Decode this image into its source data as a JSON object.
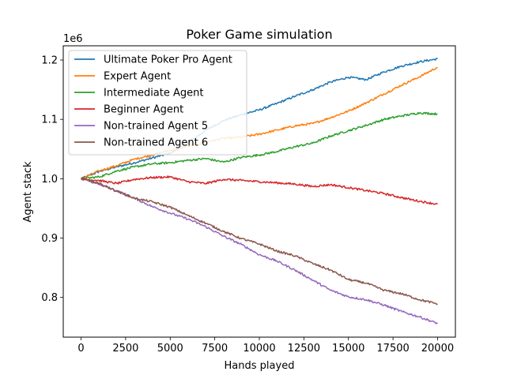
{
  "chart_data": {
    "type": "line",
    "title": "Poker Game simulation",
    "xlabel": "Hands played",
    "ylabel": "Agent stack",
    "y_scale_label": "1e6",
    "xlim": [
      -1000,
      21000
    ],
    "ylim": [
      0.733,
      1.224
    ],
    "x_ticks": [
      0,
      2500,
      5000,
      7500,
      10000,
      12500,
      15000,
      17500,
      20000
    ],
    "x_tick_labels": [
      "0",
      "2500",
      "5000",
      "7500",
      "10000",
      "12500",
      "15000",
      "17500",
      "20000"
    ],
    "y_ticks": [
      0.8,
      0.9,
      1.0,
      1.1,
      1.2
    ],
    "y_tick_labels": [
      "0.8",
      "0.9",
      "1.0",
      "1.1",
      "1.2"
    ],
    "grid": false,
    "legend_position": "top-left",
    "x": [
      0,
      1000,
      2000,
      3000,
      4000,
      5000,
      6000,
      7000,
      8000,
      9000,
      10000,
      11000,
      12000,
      13000,
      14000,
      15000,
      16000,
      17000,
      18000,
      19000,
      20000
    ],
    "series": [
      {
        "name": "Ultimate Poker Pro Agent",
        "color": "#1f77b4",
        "values": [
          1.0,
          1.012,
          1.02,
          1.027,
          1.035,
          1.043,
          1.06,
          1.082,
          1.098,
          1.108,
          1.116,
          1.127,
          1.139,
          1.15,
          1.163,
          1.171,
          1.167,
          1.18,
          1.19,
          1.197,
          1.202
        ]
      },
      {
        "name": "Expert Agent",
        "color": "#ff7f0e",
        "values": [
          1.0,
          1.013,
          1.022,
          1.033,
          1.04,
          1.048,
          1.055,
          1.062,
          1.068,
          1.07,
          1.075,
          1.082,
          1.089,
          1.093,
          1.103,
          1.114,
          1.128,
          1.143,
          1.158,
          1.172,
          1.188
        ]
      },
      {
        "name": "Intermediate Agent",
        "color": "#2ca02c",
        "values": [
          1.0,
          1.003,
          1.013,
          1.02,
          1.025,
          1.027,
          1.031,
          1.034,
          1.028,
          1.036,
          1.04,
          1.046,
          1.054,
          1.06,
          1.072,
          1.081,
          1.09,
          1.1,
          1.106,
          1.111,
          1.109
        ]
      },
      {
        "name": "Beginner Agent",
        "color": "#d62728",
        "values": [
          1.0,
          0.997,
          0.992,
          0.999,
          1.002,
          1.003,
          0.995,
          0.992,
          0.999,
          0.997,
          0.995,
          0.993,
          0.991,
          0.987,
          0.99,
          0.985,
          0.98,
          0.975,
          0.968,
          0.962,
          0.957
        ]
      },
      {
        "name": "Non-trained Agent 5",
        "color": "#9467bd",
        "values": [
          1.0,
          0.991,
          0.98,
          0.967,
          0.953,
          0.942,
          0.932,
          0.919,
          0.903,
          0.889,
          0.872,
          0.861,
          0.846,
          0.829,
          0.812,
          0.801,
          0.796,
          0.787,
          0.776,
          0.767,
          0.756
        ]
      },
      {
        "name": "Non-trained Agent 6",
        "color": "#8c564b",
        "values": [
          1.0,
          0.992,
          0.979,
          0.967,
          0.961,
          0.952,
          0.938,
          0.925,
          0.911,
          0.899,
          0.89,
          0.878,
          0.87,
          0.857,
          0.846,
          0.83,
          0.824,
          0.812,
          0.806,
          0.796,
          0.789
        ]
      }
    ]
  }
}
